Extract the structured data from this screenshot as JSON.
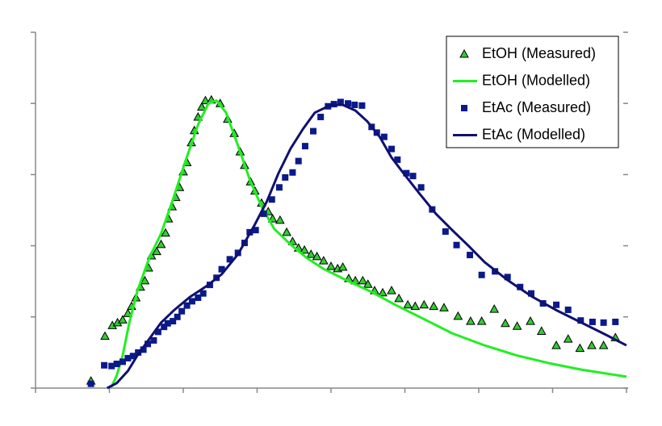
{
  "chart_data": {
    "type": "line",
    "xlim": [
      0,
      8
    ],
    "xticks": [
      0,
      1,
      2,
      3,
      4,
      5,
      6,
      7,
      8
    ],
    "ylim": [
      0,
      5
    ],
    "yticks": [
      0,
      1,
      2,
      3,
      4,
      5
    ],
    "legend": "upper right",
    "series": [
      {
        "name": "EtOH (Measured)",
        "color": "#33cc33",
        "marker": "triangle",
        "x": [
          0.75,
          0.94,
          1.04,
          1.11,
          1.18,
          1.25,
          1.3,
          1.36,
          1.42,
          1.48,
          1.53,
          1.57,
          1.64,
          1.7,
          1.76,
          1.8,
          1.85,
          1.9,
          1.95,
          2.0,
          2.05,
          2.11,
          2.15,
          2.2,
          2.25,
          2.3,
          2.38,
          2.5,
          2.6,
          2.69,
          2.77,
          2.83,
          2.91,
          2.97,
          3.06,
          3.15,
          3.21,
          3.31,
          3.4,
          3.48,
          3.56,
          3.64,
          3.73,
          3.81,
          3.9,
          4.0,
          4.09,
          4.16,
          4.24,
          4.33,
          4.43,
          4.5,
          4.59,
          4.7,
          4.82,
          4.92,
          5.04,
          5.14,
          5.26,
          5.39,
          5.53,
          5.72,
          5.89,
          6.04,
          6.21,
          6.36,
          6.52,
          6.7,
          6.85,
          7.05,
          7.21,
          7.37,
          7.53,
          7.69,
          7.85
        ],
        "values": [
          0.1,
          0.73,
          0.88,
          0.92,
          0.96,
          1.05,
          1.15,
          1.27,
          1.42,
          1.51,
          1.69,
          1.86,
          1.92,
          2.02,
          2.18,
          2.38,
          2.55,
          2.68,
          2.82,
          3.04,
          3.17,
          3.45,
          3.62,
          3.81,
          3.95,
          4.04,
          4.05,
          4.0,
          3.78,
          3.58,
          3.32,
          3.13,
          2.9,
          2.77,
          2.6,
          2.48,
          2.38,
          2.36,
          2.19,
          2.06,
          1.97,
          1.94,
          1.88,
          1.85,
          1.79,
          1.71,
          1.68,
          1.7,
          1.54,
          1.51,
          1.51,
          1.46,
          1.37,
          1.34,
          1.37,
          1.26,
          1.17,
          1.15,
          1.17,
          1.15,
          1.13,
          1.01,
          0.94,
          0.94,
          1.11,
          0.91,
          0.87,
          0.94,
          0.8,
          0.6,
          0.69,
          0.56,
          0.6,
          0.6,
          0.71
        ]
      },
      {
        "name": "EtOH (Modelled)",
        "color": "#22ee22",
        "marker": null,
        "x": [
          1.02,
          1.1,
          1.18,
          1.27,
          1.38,
          1.54,
          1.7,
          1.87,
          2.03,
          2.2,
          2.34,
          2.45,
          2.58,
          2.74,
          2.91,
          3.07,
          3.23,
          3.45,
          3.67,
          3.89,
          4.22,
          4.55,
          4.87,
          5.2,
          5.64,
          6.08,
          6.51,
          6.95,
          7.39,
          8.0
        ],
        "values": [
          0,
          0.18,
          0.46,
          0.92,
          1.37,
          1.83,
          2.17,
          2.68,
          3.19,
          3.7,
          4.0,
          4.04,
          3.87,
          3.41,
          2.9,
          2.53,
          2.24,
          2.02,
          1.83,
          1.68,
          1.51,
          1.35,
          1.17,
          1.0,
          0.77,
          0.6,
          0.46,
          0.35,
          0.26,
          0.16
        ]
      },
      {
        "name": "EtAc (Measured)",
        "color": "#0a1a8a",
        "marker": "square",
        "x": [
          0.75,
          0.93,
          1.03,
          1.1,
          1.18,
          1.25,
          1.32,
          1.39,
          1.46,
          1.52,
          1.6,
          1.66,
          1.74,
          1.79,
          1.86,
          1.92,
          1.98,
          2.05,
          2.12,
          2.2,
          2.27,
          2.36,
          2.45,
          2.52,
          2.63,
          2.74,
          2.83,
          2.9,
          2.98,
          3.09,
          3.2,
          3.3,
          3.38,
          3.48,
          3.56,
          3.65,
          3.76,
          3.86,
          3.96,
          4.04,
          4.13,
          4.23,
          4.32,
          4.42,
          4.55,
          4.62,
          4.72,
          4.82,
          4.9,
          5.02,
          5.11,
          5.22,
          5.37,
          5.55,
          5.7,
          5.88,
          6.04,
          6.22,
          6.39,
          6.56,
          6.71,
          6.87,
          7.05,
          7.21,
          7.38,
          7.54,
          7.69,
          7.85
        ],
        "values": [
          0.06,
          0.32,
          0.31,
          0.34,
          0.37,
          0.42,
          0.45,
          0.5,
          0.54,
          0.62,
          0.67,
          0.79,
          0.86,
          0.91,
          0.94,
          1.0,
          1.08,
          1.16,
          1.22,
          1.27,
          1.33,
          1.45,
          1.55,
          1.67,
          1.81,
          1.9,
          2.04,
          2.19,
          2.22,
          2.45,
          2.65,
          2.82,
          2.96,
          3.03,
          3.19,
          3.4,
          3.61,
          3.81,
          3.96,
          3.99,
          4.02,
          4.0,
          3.98,
          3.97,
          3.67,
          3.59,
          3.53,
          3.36,
          3.21,
          3.02,
          2.98,
          2.82,
          2.51,
          2.2,
          2.01,
          1.87,
          1.59,
          1.64,
          1.56,
          1.42,
          1.33,
          1.19,
          1.17,
          1.1,
          0.95,
          0.93,
          0.92,
          0.93
        ]
      },
      {
        "name": "EtAc (Modelled)",
        "color": "#101070",
        "marker": null,
        "x": [
          0.97,
          1.1,
          1.25,
          1.38,
          1.54,
          1.7,
          1.87,
          2.09,
          2.31,
          2.52,
          2.74,
          2.96,
          3.13,
          3.29,
          3.45,
          3.62,
          3.78,
          4.0,
          4.16,
          4.33,
          4.49,
          4.66,
          4.82,
          4.98,
          5.2,
          5.42,
          5.64,
          5.86,
          6.08,
          6.4,
          6.73,
          7.06,
          7.39,
          7.72,
          8.0
        ],
        "values": [
          0,
          0.07,
          0.24,
          0.46,
          0.69,
          0.92,
          1.09,
          1.28,
          1.43,
          1.6,
          1.88,
          2.28,
          2.62,
          3.02,
          3.36,
          3.64,
          3.87,
          3.98,
          3.98,
          3.9,
          3.75,
          3.53,
          3.24,
          3.02,
          2.73,
          2.45,
          2.22,
          2.0,
          1.77,
          1.51,
          1.28,
          1.09,
          0.92,
          0.75,
          0.6
        ]
      }
    ]
  }
}
